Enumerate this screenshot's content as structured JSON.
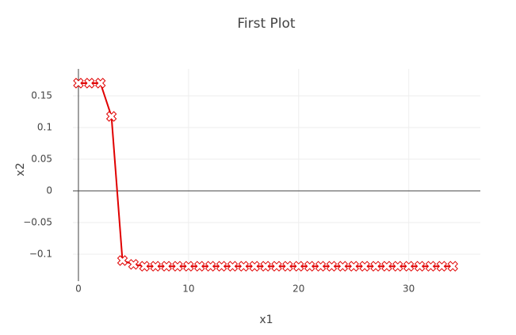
{
  "chart_data": {
    "type": "line",
    "title": "First Plot",
    "x_label": "x1",
    "y_label": "x2",
    "x": [
      0,
      1,
      2,
      3,
      4,
      5,
      6,
      7,
      8,
      9,
      10,
      11,
      12,
      13,
      14,
      15,
      16,
      17,
      18,
      19,
      20,
      21,
      22,
      23,
      24,
      25,
      26,
      27,
      28,
      29,
      30,
      31,
      32,
      33,
      34
    ],
    "values": [
      0.17,
      0.17,
      0.17,
      0.1175,
      -0.11,
      -0.116,
      -0.119,
      -0.119,
      -0.119,
      -0.119,
      -0.119,
      -0.119,
      -0.119,
      -0.119,
      -0.119,
      -0.119,
      -0.119,
      -0.119,
      -0.119,
      -0.119,
      -0.119,
      -0.119,
      -0.119,
      -0.119,
      -0.119,
      -0.119,
      -0.119,
      -0.119,
      -0.119,
      -0.119,
      -0.119,
      -0.119,
      -0.119,
      -0.119,
      -0.119
    ],
    "color": "#e00000",
    "xlim": [
      -0.5,
      36.5
    ],
    "ylim": [
      -0.1425,
      0.1925
    ],
    "xticks": [
      0,
      10,
      20,
      30
    ],
    "yticks": [
      {
        "value": -0.1,
        "label": "−0.1"
      },
      {
        "value": -0.05,
        "label": "−0.05"
      },
      0,
      0.05,
      0.1,
      0.15
    ],
    "grid": true
  }
}
